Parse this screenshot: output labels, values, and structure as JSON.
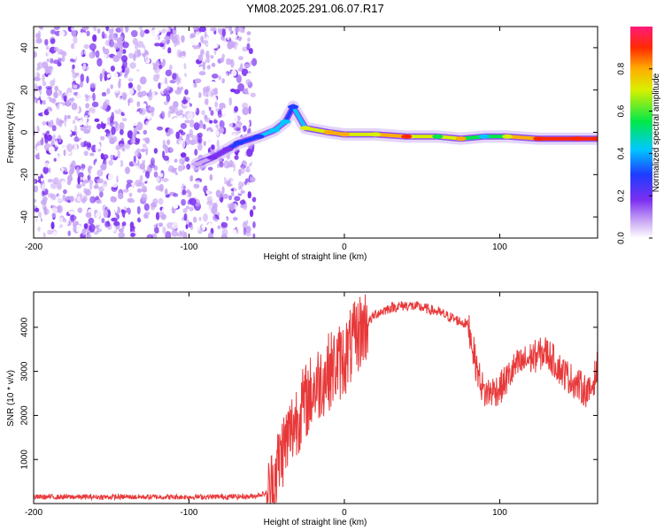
{
  "title": "YM08.2025.291.06.07.R17",
  "chart_data": [
    {
      "type": "heatmap",
      "xlabel": "Height of straight line (km)",
      "ylabel": "Frequency (Hz)",
      "xlim": [
        -200,
        163
      ],
      "ylim": [
        -50,
        50
      ],
      "xticks": [
        -200,
        -100,
        0,
        100
      ],
      "yticks": [
        -40,
        -20,
        0,
        20,
        40
      ],
      "noise_region_x": [
        -200,
        -58
      ],
      "signal_track": [
        {
          "x": -95,
          "y": -15,
          "amp": 0.15
        },
        {
          "x": -85,
          "y": -12,
          "amp": 0.2
        },
        {
          "x": -75,
          "y": -8,
          "amp": 0.25
        },
        {
          "x": -68,
          "y": -5,
          "amp": 0.35
        },
        {
          "x": -55,
          "y": -2,
          "amp": 0.4
        },
        {
          "x": -45,
          "y": 1,
          "amp": 0.5
        },
        {
          "x": -38,
          "y": 5,
          "amp": 0.45
        },
        {
          "x": -33,
          "y": 12,
          "amp": 0.3
        },
        {
          "x": -25,
          "y": 2,
          "amp": 0.75
        },
        {
          "x": -10,
          "y": 0,
          "amp": 0.8
        },
        {
          "x": 0,
          "y": -1,
          "amp": 0.85
        },
        {
          "x": 20,
          "y": -1,
          "amp": 0.7
        },
        {
          "x": 40,
          "y": -2,
          "amp": 0.9
        },
        {
          "x": 60,
          "y": -2,
          "amp": 0.6
        },
        {
          "x": 75,
          "y": -3,
          "amp": 0.85
        },
        {
          "x": 90,
          "y": -2,
          "amp": 0.5
        },
        {
          "x": 105,
          "y": -2,
          "amp": 0.7
        },
        {
          "x": 125,
          "y": -3,
          "amp": 0.95
        },
        {
          "x": 150,
          "y": -3,
          "amp": 0.95
        },
        {
          "x": 163,
          "y": -3,
          "amp": 0.95
        }
      ]
    },
    {
      "type": "line",
      "xlabel": "Height of straight line (km)",
      "ylabel": "SNR (10 * v/v)",
      "xlim": [
        -200,
        163
      ],
      "ylim": [
        0,
        4800
      ],
      "xticks": [
        -200,
        -100,
        0,
        100
      ],
      "yticks": [
        1000,
        2000,
        3000,
        4000
      ],
      "series": [
        {
          "name": "SNR",
          "color": "#e8393a",
          "x": [
            -200,
            -150,
            -100,
            -60,
            -48,
            -40,
            -30,
            -20,
            -10,
            0,
            10,
            20,
            30,
            40,
            50,
            60,
            70,
            80,
            85,
            90,
            100,
            110,
            120,
            130,
            140,
            150,
            158,
            163
          ],
          "y": [
            150,
            150,
            150,
            160,
            250,
            1200,
            2000,
            2600,
            3000,
            3300,
            3900,
            4300,
            4450,
            4500,
            4450,
            4350,
            4200,
            4050,
            3100,
            2500,
            2600,
            3100,
            3300,
            3450,
            3000,
            2700,
            2500,
            3100
          ]
        }
      ]
    }
  ],
  "colorbar": {
    "label": "Normalized spectral amplitude",
    "ticks": [
      0.0,
      0.2,
      0.4,
      0.6,
      0.8
    ],
    "tick_labels": [
      "0.0",
      "0.2",
      "0.4",
      "0.6",
      "0.8"
    ],
    "range": [
      0,
      1
    ]
  }
}
